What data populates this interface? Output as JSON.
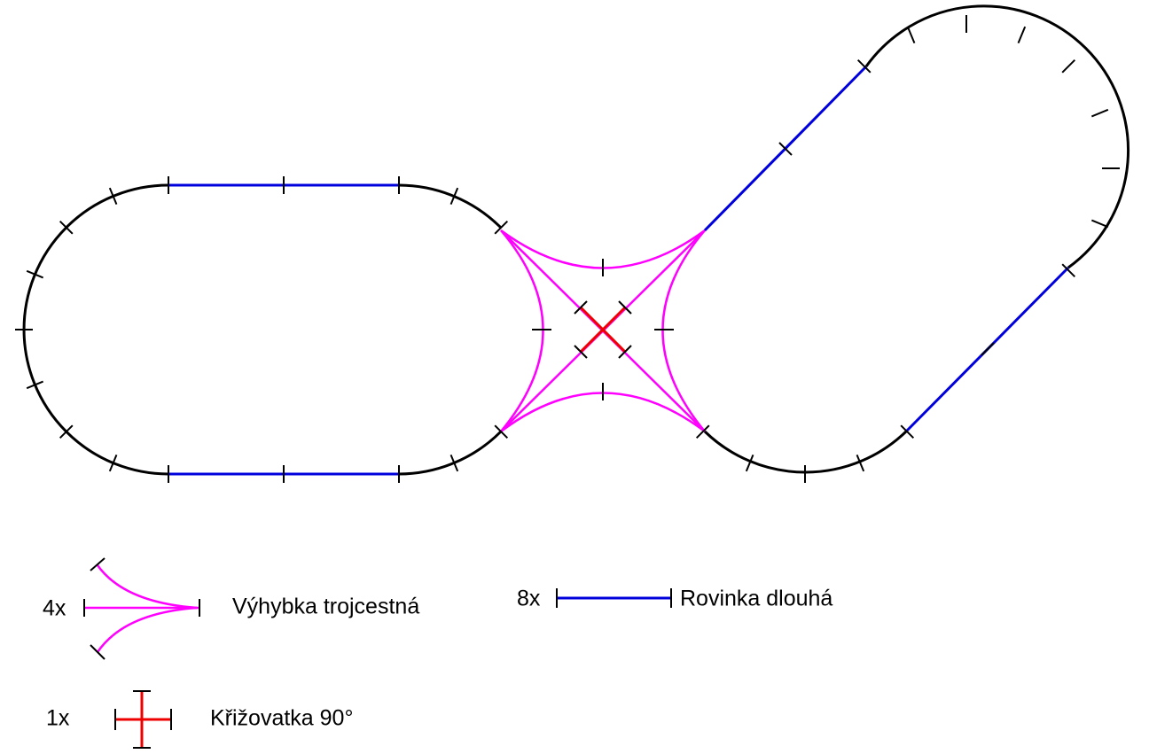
{
  "legend": {
    "items": [
      {
        "count": "4x",
        "label": "Výhybka trojcestná"
      },
      {
        "count": "8x",
        "label": "Rovinka dlouhá"
      },
      {
        "count": "1x",
        "label": "Křižovatka 90°"
      }
    ]
  }
}
